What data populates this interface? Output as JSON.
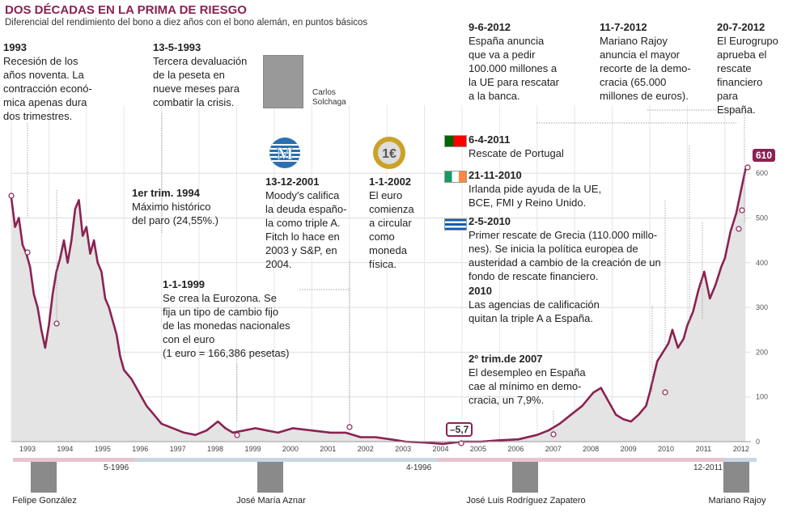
{
  "header": {
    "title": "DOS DÉCADAS EN LA PRIMA DE RIESGO",
    "subtitle": "Diferencial del rendimiento del bono a diez años con el bono alemán, en puntos básicos"
  },
  "annotations": [
    {
      "id": "a1993",
      "date": "1993",
      "text": "Recesión de los\naños noventa. La\ncontracción econó-\nmica apenas dura\ndos trimestres."
    },
    {
      "id": "a1994",
      "date": "13-5-1993",
      "text": "Tercera devaluación\nde la peseta en\nnueve meses para\ncombatir la crisis."
    },
    {
      "id": "aparo",
      "date": "1er trim. 1994",
      "text": "Máximo histórico\ndel paro (24,55%.)"
    },
    {
      "id": "a1999",
      "date": "1-1-1999",
      "text": "Se crea la Eurozona. Se\nfija un tipo de cambio fijo\nde las monedas nacionales\ncon el euro\n(1 euro = 166,386 pesetas)"
    },
    {
      "id": "amoodys",
      "date": "13-12-2001",
      "text": "Moody's califica\nla deuda españo-\nla como triple A.\nFitch lo hace en\n2003 y S&P, en\n2004."
    },
    {
      "id": "aeuro",
      "date": "1-1-2002",
      "text": "El euro\ncomienza\na circular\ncomo\nmoneda\nfísica."
    },
    {
      "id": "a2007",
      "date": "2º trim.de 2007",
      "text": "El desempleo en España\ncae al mínimo en demo-\ncracia, un 7,9%."
    },
    {
      "id": "a2010",
      "date": "2010",
      "text": "Las agencias de calificación\nquitan la triple A a España."
    },
    {
      "id": "agrecia",
      "date": "2-5-2010",
      "text": "Primer rescate de Grecia (110.000 millo-\nnes). Se inicia la política europea de\nausteridad a cambio de la creación de un\nfondo de rescate financiero."
    },
    {
      "id": "airlanda",
      "date": "21-11-2010",
      "text": "Irlanda pide ayuda de la UE,\nBCE, FMI y Reino Unido."
    },
    {
      "id": "aportugal",
      "date": "6-4-2011",
      "text": "Rescate de Portugal"
    },
    {
      "id": "abanca",
      "date": "9-6-2012",
      "text": "España anuncia\nque va a pedir\n100.000 millones a\nla UE para rescatar\na la banca."
    },
    {
      "id": "arecorte",
      "date": "11-7-2012",
      "text": "Mariano Rajoy\nanuncia el mayor\nrecorte de la demo-\ncracia (65.000\nmillones de euros)."
    },
    {
      "id": "aeurogrupo",
      "date": "20-7-2012",
      "text": "El Eurogrupo\naprueba el\nrescate financiero\npara\nEspaña."
    }
  ],
  "captions": {
    "solchaga": "Carlos\nSolchaga"
  },
  "callouts": {
    "max": "610",
    "min": "–5,7"
  },
  "eras": [
    {
      "name": "Felipe González",
      "end_label": "5-1996",
      "color": "#e8c4d0"
    },
    {
      "name": "José María Aznar",
      "end_label": "4-1996",
      "color": "#c9d7e3"
    },
    {
      "name": "José Luis Rodríguez Zapatero",
      "end_label": "12-2011",
      "color": "#e8c4d0"
    },
    {
      "name": "Mariano Rajoy",
      "end_label": "",
      "color": "#c9d7e3"
    }
  ],
  "chart_data": {
    "type": "line",
    "title": "DOS DÉCADAS EN LA PRIMA DE RIESGO",
    "ylabel": "",
    "ylim": [
      0,
      650
    ],
    "yticks": [
      0,
      100,
      200,
      300,
      400,
      500,
      600
    ],
    "xticks": [
      "1993",
      "1994",
      "1995",
      "1996",
      "1997",
      "1998",
      "1999",
      "2000",
      "2001",
      "2002",
      "2003",
      "2004",
      "2005",
      "2006",
      "2007",
      "2008",
      "2009",
      "2010",
      "2011",
      "2012"
    ],
    "color": "#8b2252",
    "series": [
      {
        "x": [
          1993.0,
          1993.1,
          1993.2,
          1993.3,
          1993.4,
          1993.5,
          1993.6,
          1993.7,
          1993.8,
          1993.9,
          1994.0,
          1994.1,
          1994.2,
          1994.3,
          1994.4,
          1994.5,
          1994.6,
          1994.7,
          1994.8,
          1994.9,
          1995.0,
          1995.1,
          1995.2,
          1995.3,
          1995.4,
          1995.5,
          1995.6,
          1995.7,
          1995.8,
          1995.9,
          1996.0,
          1996.2,
          1996.4,
          1996.6,
          1996.8,
          1997.0,
          1997.3,
          1997.6,
          1997.9,
          1998.2,
          1998.5,
          1998.7,
          1998.9,
          1999.2,
          1999.5,
          1999.8,
          2000.1,
          2000.5,
          2001.0,
          2001.5,
          2001.9,
          2002.3,
          2002.7,
          2003.1,
          2003.5,
          2004.0,
          2004.5,
          2005.0,
          2005.5,
          2006.0,
          2006.5,
          2007.0,
          2007.3,
          2007.6,
          2007.9,
          2008.2,
          2008.5,
          2008.7,
          2008.9,
          2009.1,
          2009.3,
          2009.5,
          2009.7,
          2009.9,
          2010.0,
          2010.2,
          2010.35,
          2010.5,
          2010.6,
          2010.75,
          2010.9,
          2011.0,
          2011.15,
          2011.3,
          2011.45,
          2011.6,
          2011.75,
          2011.9,
          2012.0,
          2012.15,
          2012.3,
          2012.45,
          2012.55
        ],
        "values": [
          545,
          480,
          500,
          440,
          420,
          390,
          330,
          300,
          250,
          210,
          260,
          330,
          380,
          410,
          450,
          400,
          450,
          520,
          540,
          460,
          480,
          420,
          450,
          400,
          380,
          320,
          300,
          270,
          240,
          190,
          160,
          140,
          110,
          80,
          60,
          40,
          30,
          20,
          15,
          25,
          45,
          30,
          20,
          25,
          30,
          25,
          20,
          30,
          25,
          20,
          20,
          10,
          10,
          5,
          0,
          -2,
          -5,
          0,
          0,
          3,
          5,
          15,
          25,
          40,
          60,
          80,
          110,
          120,
          90,
          60,
          50,
          45,
          60,
          80,
          110,
          180,
          200,
          220,
          250,
          210,
          230,
          260,
          290,
          340,
          380,
          320,
          350,
          390,
          410,
          470,
          510,
          570,
          610
        ]
      }
    ]
  }
}
